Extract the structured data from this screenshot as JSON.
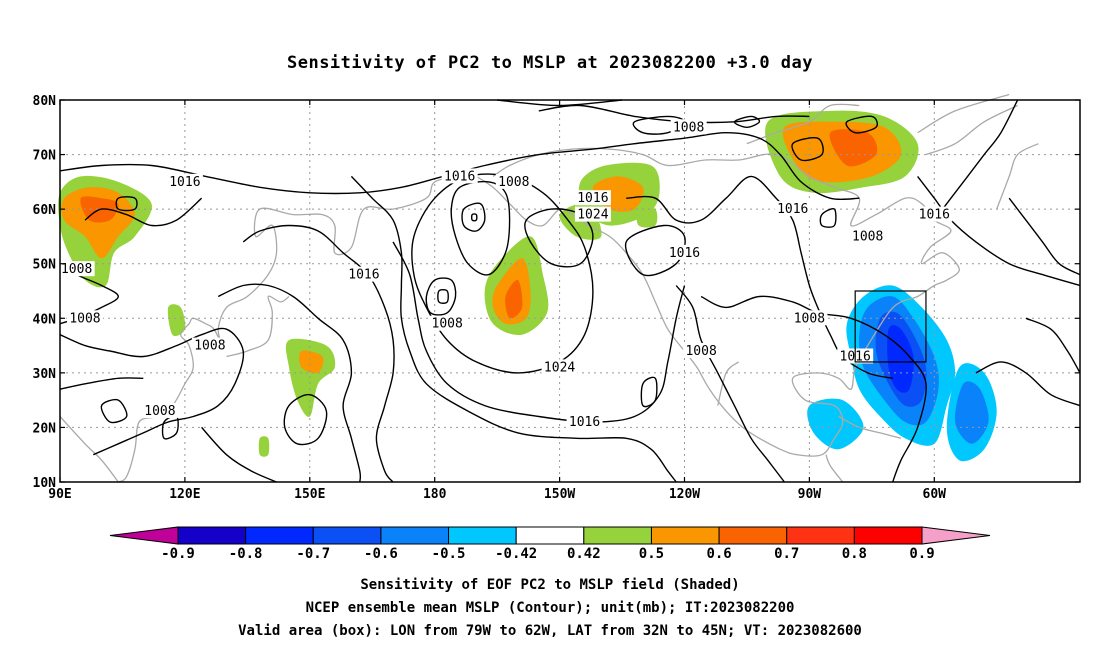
{
  "title": "Sensitivity of PC2 to MSLP at 2023082200 +3.0 day",
  "map": {
    "lon_ticks": [
      "90E",
      "120E",
      "150E",
      "180",
      "150W",
      "120W",
      "90W",
      "60W"
    ],
    "lat_ticks": [
      "80N",
      "70N",
      "60N",
      "50N",
      "40N",
      "30N",
      "20N",
      "10N"
    ],
    "contour_labels": [
      {
        "text": "1016",
        "lon": 120,
        "lat": 65
      },
      {
        "text": "1008",
        "lon": 94,
        "lat": 49
      },
      {
        "text": "1008",
        "lon": 96,
        "lat": 40
      },
      {
        "text": "1008",
        "lon": 126,
        "lat": 35
      },
      {
        "text": "1008",
        "lon": 114,
        "lat": 23
      },
      {
        "text": "1016",
        "lon": 163,
        "lat": 48
      },
      {
        "text": "1016",
        "lon": 186,
        "lat": 66
      },
      {
        "text": "1008",
        "lon": 199,
        "lat": 65
      },
      {
        "text": "1016",
        "lon": 218,
        "lat": 62
      },
      {
        "text": "1024",
        "lon": 218,
        "lat": 59
      },
      {
        "text": "1008",
        "lon": 183,
        "lat": 39
      },
      {
        "text": "1024",
        "lon": 210,
        "lat": 31
      },
      {
        "text": "1016",
        "lon": 216,
        "lat": 21
      },
      {
        "text": "1008",
        "lon": 241,
        "lat": 75
      },
      {
        "text": "1016",
        "lon": 240,
        "lat": 52
      },
      {
        "text": "1008",
        "lon": 244,
        "lat": 34
      },
      {
        "text": "1016",
        "lon": 266,
        "lat": 60
      },
      {
        "text": "1008",
        "lon": 270,
        "lat": 40
      },
      {
        "text": "1008",
        "lon": 284,
        "lat": 55
      },
      {
        "text": "1016",
        "lon": 281,
        "lat": 33
      },
      {
        "text": "1016",
        "lon": 300,
        "lat": 59
      }
    ],
    "valid_box": {
      "lon_min": -79,
      "lon_max": -62,
      "lat_min": 32,
      "lat_max": 45
    }
  },
  "colorbar": {
    "labels": [
      "-0.9",
      "-0.8",
      "-0.7",
      "-0.6",
      "-0.5",
      "-0.42",
      "0.42",
      "0.5",
      "0.6",
      "0.7",
      "0.8",
      "0.9"
    ],
    "colors": [
      "#bf0099",
      "#1400c8",
      "#0028ff",
      "#0a50f5",
      "#0a82fa",
      "#00c8ff",
      "#ffffff",
      "#96d23c",
      "#fa9600",
      "#fa6400",
      "#ff3214",
      "#ff0000",
      "#f5a0c8"
    ]
  },
  "footer": {
    "line1": "Sensitivity of EOF PC2 to MSLP field (Shaded)",
    "line2": "NCEP ensemble mean MSLP (Contour); unit(mb); IT:2023082200",
    "line3": "Valid area (box): LON from 79W to 62W, LAT from 32N to 45N; VT: 2023082600"
  }
}
